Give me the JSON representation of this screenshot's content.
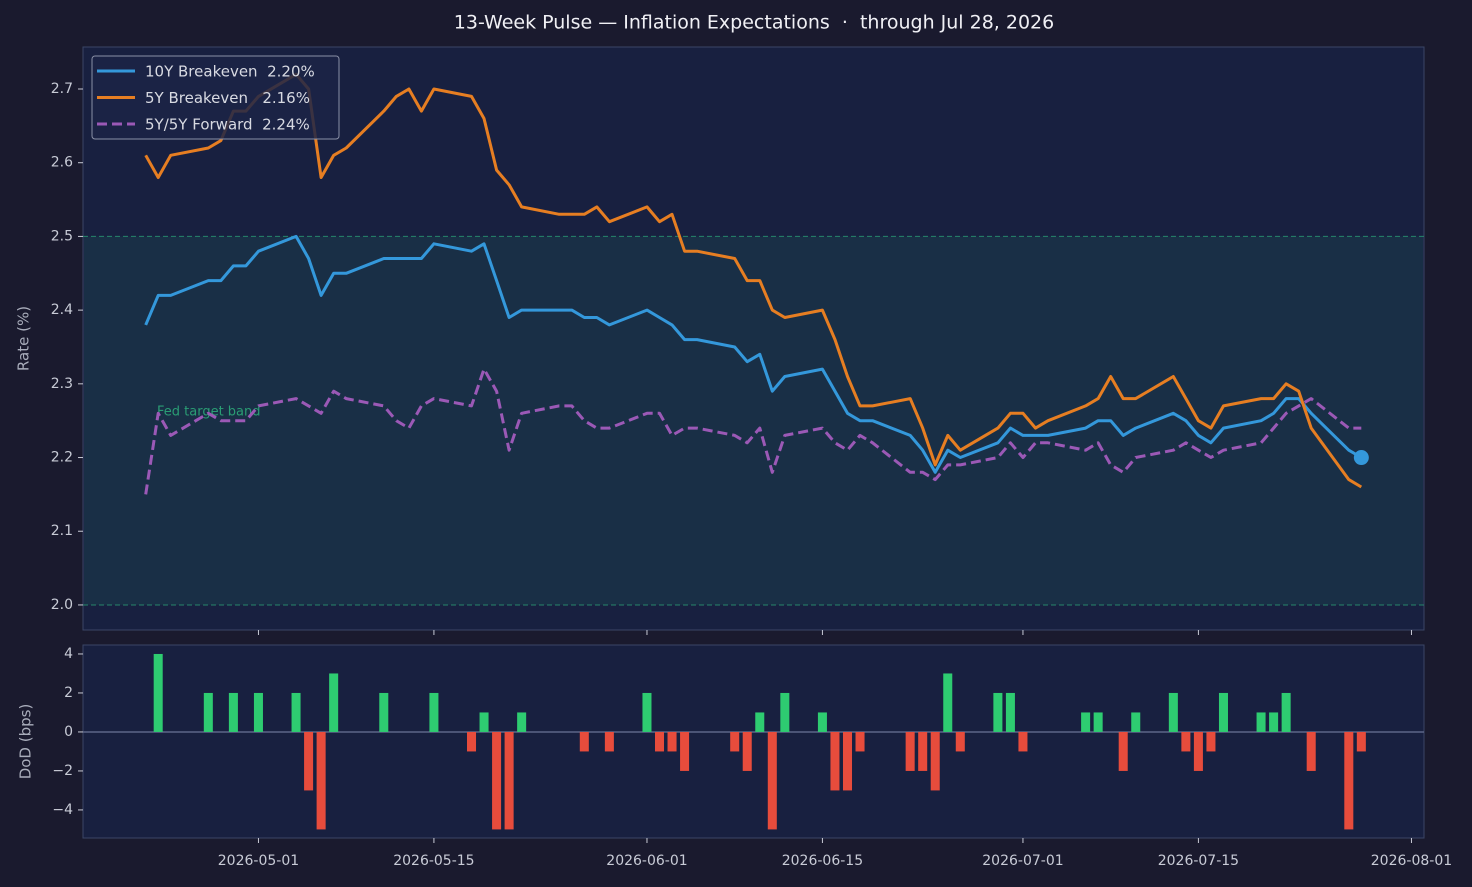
{
  "chart_data": [
    {
      "type": "line",
      "title": "13-Week Pulse — Inflation Expectations  ·  through Jul 28, 2026",
      "ylabel": "Rate (%)",
      "x": [
        "2026-04-22",
        "2026-04-23",
        "2026-04-24",
        "2026-04-27",
        "2026-04-28",
        "2026-04-29",
        "2026-04-30",
        "2026-05-01",
        "2026-05-04",
        "2026-05-05",
        "2026-05-06",
        "2026-05-07",
        "2026-05-08",
        "2026-05-11",
        "2026-05-12",
        "2026-05-13",
        "2026-05-14",
        "2026-05-15",
        "2026-05-18",
        "2026-05-19",
        "2026-05-20",
        "2026-05-21",
        "2026-05-22",
        "2026-05-25",
        "2026-05-26",
        "2026-05-27",
        "2026-05-28",
        "2026-05-29",
        "2026-06-01",
        "2026-06-02",
        "2026-06-03",
        "2026-06-04",
        "2026-06-05",
        "2026-06-08",
        "2026-06-09",
        "2026-06-10",
        "2026-06-11",
        "2026-06-12",
        "2026-06-15",
        "2026-06-16",
        "2026-06-17",
        "2026-06-18",
        "2026-06-19",
        "2026-06-22",
        "2026-06-23",
        "2026-06-24",
        "2026-06-25",
        "2026-06-26",
        "2026-06-29",
        "2026-06-30",
        "2026-07-01",
        "2026-07-02",
        "2026-07-03",
        "2026-07-06",
        "2026-07-07",
        "2026-07-08",
        "2026-07-09",
        "2026-07-10",
        "2026-07-13",
        "2026-07-14",
        "2026-07-15",
        "2026-07-16",
        "2026-07-17",
        "2026-07-20",
        "2026-07-21",
        "2026-07-22",
        "2026-07-23",
        "2026-07-24",
        "2026-07-27",
        "2026-07-28"
      ],
      "series": [
        {
          "name": "10Y Breakeven  2.20%",
          "color": "#3498db",
          "style": "solid",
          "marker_last": true,
          "values": [
            2.38,
            2.42,
            2.42,
            2.44,
            2.44,
            2.46,
            2.46,
            2.48,
            2.5,
            2.47,
            2.42,
            2.45,
            2.45,
            2.47,
            2.47,
            2.47,
            2.47,
            2.49,
            2.48,
            2.49,
            2.44,
            2.39,
            2.4,
            2.4,
            2.4,
            2.39,
            2.39,
            2.38,
            2.4,
            2.39,
            2.38,
            2.36,
            2.36,
            2.35,
            2.33,
            2.34,
            2.29,
            2.31,
            2.32,
            2.29,
            2.26,
            2.25,
            2.25,
            2.23,
            2.21,
            2.18,
            2.21,
            2.2,
            2.22,
            2.24,
            2.23,
            2.23,
            2.23,
            2.24,
            2.25,
            2.25,
            2.23,
            2.24,
            2.26,
            2.25,
            2.23,
            2.22,
            2.24,
            2.25,
            2.26,
            2.28,
            2.28,
            2.26,
            2.21,
            2.2
          ]
        },
        {
          "name": "5Y Breakeven   2.16%",
          "color": "#e67e22",
          "style": "solid",
          "values": [
            2.61,
            2.58,
            2.61,
            2.62,
            2.63,
            2.67,
            2.67,
            2.69,
            2.72,
            2.7,
            2.58,
            2.61,
            2.62,
            2.67,
            2.69,
            2.7,
            2.67,
            2.7,
            2.69,
            2.66,
            2.59,
            2.57,
            2.54,
            2.53,
            2.53,
            2.53,
            2.54,
            2.52,
            2.54,
            2.52,
            2.53,
            2.48,
            2.48,
            2.47,
            2.44,
            2.44,
            2.4,
            2.39,
            2.4,
            2.36,
            2.31,
            2.27,
            2.27,
            2.28,
            2.24,
            2.19,
            2.23,
            2.21,
            2.24,
            2.26,
            2.26,
            2.24,
            2.25,
            2.27,
            2.28,
            2.31,
            2.28,
            2.28,
            2.31,
            2.28,
            2.25,
            2.24,
            2.27,
            2.28,
            2.28,
            2.3,
            2.29,
            2.24,
            2.17,
            2.16
          ]
        },
        {
          "name": "5Y/5Y Forward  2.24%",
          "color": "#9b59b6",
          "style": "dashed",
          "values": [
            2.15,
            2.26,
            2.23,
            2.26,
            2.25,
            2.25,
            2.25,
            2.27,
            2.28,
            2.27,
            2.26,
            2.29,
            2.28,
            2.27,
            2.25,
            2.24,
            2.27,
            2.28,
            2.27,
            2.32,
            2.29,
            2.21,
            2.26,
            2.27,
            2.27,
            2.25,
            2.24,
            2.24,
            2.26,
            2.26,
            2.23,
            2.24,
            2.24,
            2.23,
            2.22,
            2.24,
            2.18,
            2.23,
            2.24,
            2.22,
            2.21,
            2.23,
            2.22,
            2.18,
            2.18,
            2.17,
            2.19,
            2.19,
            2.2,
            2.22,
            2.2,
            2.22,
            2.22,
            2.21,
            2.22,
            2.19,
            2.18,
            2.2,
            2.21,
            2.22,
            2.21,
            2.2,
            2.21,
            2.22,
            2.24,
            2.26,
            2.27,
            2.28,
            2.24,
            2.24
          ]
        }
      ],
      "xlim": [
        "2026-04-17",
        "2026-08-02"
      ],
      "xticks": [
        "2026-05-01",
        "2026-05-15",
        "2026-06-01",
        "2026-06-15",
        "2026-07-01",
        "2026-07-15",
        "2026-08-01"
      ],
      "ylim": [
        1.966,
        2.757
      ],
      "yticks": [
        {
          "value": 2,
          "label": "2.0"
        },
        2.1,
        2.2,
        2.3,
        2.4,
        2.5,
        2.6,
        2.7
      ],
      "band": [
        2.0,
        2.5
      ],
      "band_label": "Fed target band",
      "band_color": "#2a9d74",
      "legend": "upper left",
      "grid": false
    },
    {
      "type": "bar",
      "ylabel": "DoD (bps)",
      "x": [
        "2026-04-23",
        "2026-04-24",
        "2026-04-27",
        "2026-04-28",
        "2026-04-29",
        "2026-04-30",
        "2026-05-01",
        "2026-05-04",
        "2026-05-05",
        "2026-05-06",
        "2026-05-07",
        "2026-05-08",
        "2026-05-11",
        "2026-05-12",
        "2026-05-13",
        "2026-05-14",
        "2026-05-15",
        "2026-05-18",
        "2026-05-19",
        "2026-05-20",
        "2026-05-21",
        "2026-05-22",
        "2026-05-25",
        "2026-05-26",
        "2026-05-27",
        "2026-05-28",
        "2026-05-29",
        "2026-06-01",
        "2026-06-02",
        "2026-06-03",
        "2026-06-04",
        "2026-06-05",
        "2026-06-08",
        "2026-06-09",
        "2026-06-10",
        "2026-06-11",
        "2026-06-12",
        "2026-06-15",
        "2026-06-16",
        "2026-06-17",
        "2026-06-18",
        "2026-06-19",
        "2026-06-22",
        "2026-06-23",
        "2026-06-24",
        "2026-06-25",
        "2026-06-26",
        "2026-06-29",
        "2026-06-30",
        "2026-07-01",
        "2026-07-02",
        "2026-07-03",
        "2026-07-06",
        "2026-07-07",
        "2026-07-08",
        "2026-07-09",
        "2026-07-10",
        "2026-07-13",
        "2026-07-14",
        "2026-07-15",
        "2026-07-16",
        "2026-07-17",
        "2026-07-20",
        "2026-07-21",
        "2026-07-22",
        "2026-07-23",
        "2026-07-24",
        "2026-07-27",
        "2026-07-28"
      ],
      "values": [
        4,
        0,
        2,
        0,
        2,
        0,
        2,
        2,
        -3,
        -5,
        3,
        0,
        2,
        0,
        0,
        0,
        2,
        -1,
        1,
        -5,
        -5,
        1,
        0,
        0,
        -1,
        0,
        -1,
        2,
        -1,
        -1,
        -2,
        0,
        -1,
        -2,
        1,
        -5,
        2,
        1,
        -3,
        -3,
        -1,
        0,
        -2,
        -2,
        -3,
        3,
        -1,
        2,
        2,
        -1,
        0,
        0,
        1,
        1,
        0,
        -2,
        1,
        2,
        -1,
        -2,
        -1,
        2,
        1,
        1,
        2,
        0,
        -2,
        -5,
        -1
      ],
      "pos_color": "#2ecc71",
      "neg_color": "#e74c3c",
      "xlim": [
        "2026-04-17",
        "2026-08-02"
      ],
      "xticks": [
        "2026-05-01",
        "2026-05-15",
        "2026-06-01",
        "2026-06-15",
        "2026-07-01",
        "2026-07-15",
        "2026-08-01"
      ],
      "ylim": [
        -5.44,
        4.46
      ],
      "yticks": [
        {
          "value": -4,
          "label": "−4"
        },
        {
          "value": -2,
          "label": "−2"
        },
        0,
        2,
        4
      ]
    }
  ]
}
